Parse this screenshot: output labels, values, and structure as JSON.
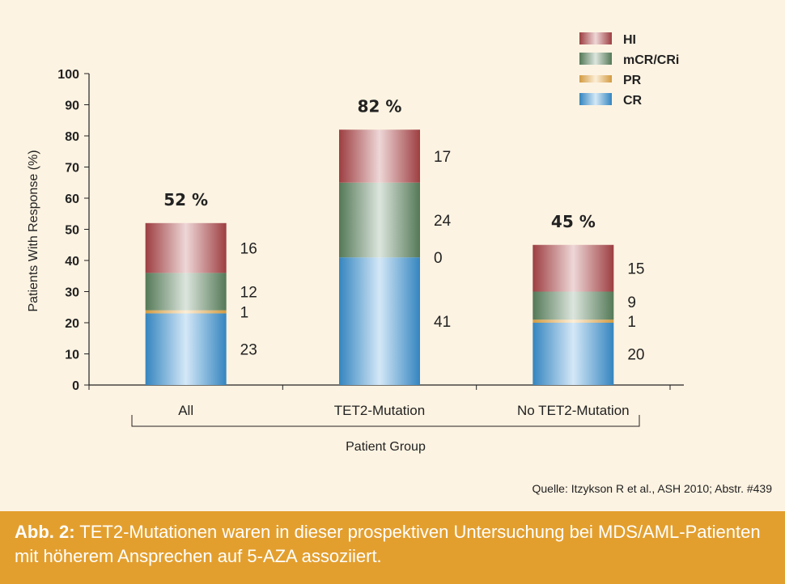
{
  "chart_data": {
    "type": "bar",
    "stacked": true,
    "categories": [
      "All",
      "TET2-Mutation",
      "No TET2-Mutation"
    ],
    "series": [
      {
        "name": "CR",
        "values": [
          23,
          41,
          20
        ],
        "color": "#3b97d9"
      },
      {
        "name": "PR",
        "values": [
          1,
          0,
          1
        ],
        "color": "#f0b04a"
      },
      {
        "name": "mCR/CRi",
        "values": [
          12,
          24,
          9
        ],
        "color": "#5f8a63"
      },
      {
        "name": "HI",
        "values": [
          16,
          17,
          15
        ],
        "color": "#b2474a"
      }
    ],
    "heights": [
      52,
      82,
      45
    ],
    "totals_labels": [
      "52 %",
      "82 %",
      "45 %"
    ],
    "ylabel": "Patients With Response (%)",
    "xlabel": "Patient Group",
    "ylim": [
      0,
      100
    ],
    "yticks": [
      "0",
      "10",
      "20",
      "30",
      "40",
      "50",
      "60",
      "70",
      "80",
      "90",
      "100"
    ],
    "legend_order": [
      "HI",
      "mCR/CRi",
      "PR",
      "CR"
    ],
    "legend_position": "top-right",
    "grid": false
  },
  "source": "Quelle: Itzykson R et al., ASH 2010; Abstr. #439",
  "caption": {
    "label": "Abb. 2:",
    "text": " TET2-Mutationen waren in dieser prospektiven Untersuchung bei MDS/AML-Patienten mit höherem Ansprechen auf 5-AZA assoziiert."
  }
}
